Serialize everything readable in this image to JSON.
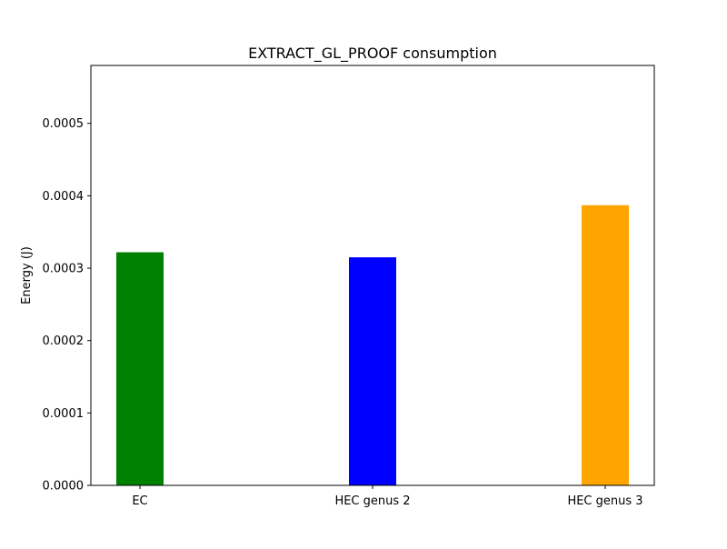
{
  "chart_data": {
    "type": "bar",
    "title": "EXTRACT_GL_PROOF consumption",
    "xlabel": "",
    "ylabel": "Energy (J)",
    "categories": [
      "EC",
      "HEC genus 2",
      "HEC genus 3"
    ],
    "values": [
      0.000322,
      0.000315,
      0.000387
    ],
    "colors": [
      "#008000",
      "#0000ff",
      "#ffa500"
    ],
    "ylim": [
      0,
      0.00058
    ],
    "yticks": [
      0,
      0.0001,
      0.0002,
      0.0003,
      0.0004,
      0.0005
    ],
    "ytick_labels": [
      "0.0000",
      "0.0001",
      "0.0002",
      "0.0003",
      "0.0004",
      "0.0005"
    ],
    "grid": false,
    "legend": "none"
  }
}
